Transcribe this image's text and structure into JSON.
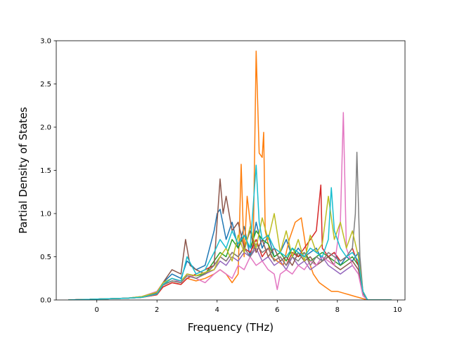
{
  "chart_data": {
    "type": "line",
    "title": "",
    "xlabel": "Frequency (THz)",
    "ylabel": "Partial Density of States",
    "xlim": [
      -1.35,
      10.25
    ],
    "ylim": [
      0.0,
      3.0
    ],
    "xticks": [
      0,
      2,
      4,
      6,
      8,
      10
    ],
    "yticks": [
      0.0,
      0.5,
      1.0,
      1.5,
      2.0,
      2.5,
      3.0
    ],
    "xtick_labels": [
      "0",
      "2",
      "4",
      "6",
      "8",
      "10"
    ],
    "ytick_labels": [
      "0.0",
      "0.5",
      "1.0",
      "1.5",
      "2.0",
      "2.5",
      "3.0"
    ],
    "grid": false,
    "legend": "none",
    "series": [
      {
        "color": "#1f77b4",
        "x": [
          -0.95,
          1.0,
          1.5,
          2.0,
          2.2,
          2.5,
          2.8,
          3.0,
          3.3,
          3.6,
          3.9,
          4.0,
          4.1,
          4.3,
          4.5,
          4.7,
          4.9,
          5.1,
          5.3,
          5.5,
          5.7,
          5.9,
          6.1,
          6.3,
          6.5,
          6.7,
          6.9,
          7.1,
          7.3,
          7.5,
          7.7,
          7.9,
          8.1,
          8.3,
          8.5,
          8.7,
          8.85,
          9.0,
          9.8
        ],
        "y": [
          0,
          0.02,
          0.04,
          0.08,
          0.2,
          0.3,
          0.25,
          0.45,
          0.35,
          0.4,
          0.8,
          1.0,
          1.05,
          0.7,
          0.9,
          0.6,
          0.85,
          0.5,
          0.9,
          0.6,
          0.75,
          0.5,
          0.55,
          0.7,
          0.5,
          0.6,
          0.5,
          0.55,
          0.6,
          0.45,
          0.5,
          0.55,
          0.4,
          0.5,
          0.45,
          0.55,
          0.1,
          0,
          0
        ]
      },
      {
        "color": "#ff7f0e",
        "x": [
          -0.95,
          1.0,
          1.5,
          2.0,
          2.2,
          2.5,
          2.8,
          3.0,
          3.3,
          3.6,
          3.9,
          4.1,
          4.3,
          4.5,
          4.7,
          4.8,
          4.9,
          5.0,
          5.2,
          5.3,
          5.4,
          5.5,
          5.55,
          5.6,
          5.8,
          6.0,
          6.2,
          6.4,
          6.6,
          6.8,
          7.0,
          7.2,
          7.4,
          7.6,
          7.8,
          8.0,
          8.2,
          8.4,
          8.6,
          8.8,
          9.0,
          9.8
        ],
        "y": [
          0,
          0.02,
          0.03,
          0.06,
          0.15,
          0.2,
          0.18,
          0.25,
          0.22,
          0.25,
          0.3,
          0.35,
          0.3,
          0.2,
          0.3,
          1.57,
          0.5,
          1.2,
          0.6,
          2.88,
          1.7,
          1.65,
          1.94,
          0.8,
          0.5,
          0.45,
          0.4,
          0.7,
          0.9,
          0.95,
          0.5,
          0.3,
          0.2,
          0.15,
          0.1,
          0.1,
          0.08,
          0.06,
          0.04,
          0.02,
          0,
          0
        ]
      },
      {
        "color": "#2ca02c",
        "x": [
          -0.95,
          1.0,
          1.5,
          2.0,
          2.2,
          2.5,
          2.8,
          3.0,
          3.3,
          3.6,
          3.9,
          4.1,
          4.3,
          4.5,
          4.7,
          4.9,
          5.1,
          5.3,
          5.5,
          5.7,
          5.9,
          6.1,
          6.3,
          6.5,
          6.7,
          6.9,
          7.1,
          7.3,
          7.5,
          7.7,
          7.9,
          8.1,
          8.3,
          8.5,
          8.7,
          8.85,
          9.0,
          9.8
        ],
        "y": [
          0,
          0.02,
          0.03,
          0.07,
          0.18,
          0.22,
          0.2,
          0.3,
          0.28,
          0.3,
          0.45,
          0.55,
          0.5,
          0.7,
          0.6,
          0.75,
          0.6,
          0.8,
          0.7,
          0.65,
          0.5,
          0.55,
          0.45,
          0.6,
          0.5,
          0.55,
          0.45,
          0.5,
          0.55,
          0.5,
          0.45,
          0.4,
          0.45,
          0.5,
          0.4,
          0.1,
          0,
          0
        ]
      },
      {
        "color": "#d62728",
        "x": [
          -0.95,
          1.0,
          1.5,
          2.0,
          2.2,
          2.5,
          2.8,
          3.0,
          3.3,
          3.6,
          3.9,
          4.1,
          4.3,
          4.5,
          4.7,
          4.9,
          5.1,
          5.3,
          5.5,
          5.7,
          5.9,
          6.1,
          6.3,
          6.5,
          6.7,
          6.9,
          7.1,
          7.3,
          7.45,
          7.5,
          7.7,
          7.9,
          8.1,
          8.3,
          8.5,
          8.7,
          8.85,
          9.0,
          9.8
        ],
        "y": [
          0,
          0.02,
          0.03,
          0.06,
          0.15,
          0.2,
          0.18,
          0.25,
          0.3,
          0.35,
          0.4,
          0.5,
          0.45,
          0.55,
          0.5,
          0.6,
          0.55,
          0.7,
          0.5,
          0.6,
          0.45,
          0.5,
          0.4,
          0.55,
          0.5,
          0.6,
          0.7,
          0.8,
          1.33,
          0.6,
          0.5,
          0.55,
          0.45,
          0.5,
          0.6,
          0.4,
          0.1,
          0,
          0
        ]
      },
      {
        "color": "#9467bd",
        "x": [
          -0.95,
          1.0,
          1.5,
          2.0,
          2.2,
          2.5,
          2.8,
          3.0,
          3.3,
          3.6,
          3.9,
          4.1,
          4.3,
          4.5,
          4.7,
          4.9,
          5.1,
          5.3,
          5.5,
          5.7,
          5.9,
          6.1,
          6.3,
          6.5,
          6.7,
          6.9,
          7.1,
          7.3,
          7.5,
          7.7,
          7.9,
          8.1,
          8.3,
          8.5,
          8.7,
          8.85,
          9.0,
          9.8
        ],
        "y": [
          0,
          0.02,
          0.03,
          0.07,
          0.18,
          0.25,
          0.2,
          0.3,
          0.25,
          0.3,
          0.35,
          0.45,
          0.4,
          0.5,
          0.45,
          0.55,
          0.5,
          0.6,
          0.45,
          0.5,
          0.4,
          0.45,
          0.35,
          0.5,
          0.4,
          0.45,
          0.35,
          0.4,
          0.5,
          0.4,
          0.35,
          0.3,
          0.35,
          0.4,
          0.3,
          0.08,
          0,
          0
        ]
      },
      {
        "color": "#8c564b",
        "x": [
          -0.95,
          1.0,
          1.5,
          2.0,
          2.2,
          2.5,
          2.8,
          2.95,
          3.1,
          3.3,
          3.6,
          3.9,
          4.1,
          4.2,
          4.3,
          4.5,
          4.7,
          4.9,
          5.1,
          5.3,
          5.5,
          5.7,
          5.9,
          6.1,
          6.3,
          6.5,
          6.7,
          6.9,
          7.1,
          7.3,
          7.5,
          7.7,
          7.9,
          8.1,
          8.3,
          8.5,
          8.7,
          8.85,
          9.0,
          9.8
        ],
        "y": [
          0,
          0.02,
          0.03,
          0.08,
          0.2,
          0.35,
          0.3,
          0.7,
          0.4,
          0.35,
          0.3,
          0.4,
          1.4,
          1.0,
          1.2,
          0.8,
          0.9,
          0.6,
          0.8,
          0.55,
          0.7,
          0.5,
          0.6,
          0.45,
          0.5,
          0.4,
          0.55,
          0.45,
          0.5,
          0.4,
          0.45,
          0.5,
          0.4,
          0.35,
          0.4,
          0.45,
          0.35,
          0.08,
          0,
          0
        ]
      },
      {
        "color": "#e377c2",
        "x": [
          -0.95,
          1.0,
          1.5,
          2.0,
          2.2,
          2.5,
          2.8,
          3.0,
          3.3,
          3.6,
          3.9,
          4.1,
          4.3,
          4.5,
          4.7,
          4.9,
          5.1,
          5.3,
          5.5,
          5.7,
          5.9,
          6.0,
          6.1,
          6.3,
          6.5,
          6.7,
          6.9,
          7.1,
          7.3,
          7.5,
          7.7,
          7.9,
          8.1,
          8.2,
          8.3,
          8.5,
          8.7,
          8.85,
          9.0,
          9.8
        ],
        "y": [
          0,
          0.02,
          0.04,
          0.1,
          0.2,
          0.25,
          0.2,
          0.3,
          0.25,
          0.2,
          0.3,
          0.35,
          0.3,
          0.25,
          0.4,
          0.35,
          0.5,
          0.4,
          0.45,
          0.35,
          0.3,
          0.12,
          0.3,
          0.35,
          0.3,
          0.4,
          0.35,
          0.45,
          0.4,
          0.5,
          0.45,
          0.4,
          0.9,
          2.17,
          0.6,
          0.4,
          0.3,
          0.05,
          0,
          0
        ]
      },
      {
        "color": "#7f7f7f",
        "x": [
          -0.95,
          1.0,
          1.5,
          2.0,
          2.2,
          2.5,
          2.8,
          3.0,
          3.3,
          3.6,
          3.9,
          4.1,
          4.3,
          4.5,
          4.7,
          4.9,
          5.1,
          5.3,
          5.5,
          5.7,
          5.9,
          6.1,
          6.3,
          6.5,
          6.7,
          6.9,
          7.1,
          7.3,
          7.5,
          7.7,
          7.9,
          8.1,
          8.3,
          8.5,
          8.6,
          8.65,
          8.75,
          8.85,
          9.0,
          9.8
        ],
        "y": [
          0,
          0.02,
          0.03,
          0.07,
          0.17,
          0.22,
          0.2,
          0.28,
          0.25,
          0.3,
          0.4,
          0.5,
          0.45,
          0.55,
          0.5,
          0.6,
          0.5,
          0.65,
          0.55,
          0.6,
          0.45,
          0.5,
          0.4,
          0.5,
          0.45,
          0.55,
          0.4,
          0.5,
          0.45,
          0.55,
          0.5,
          0.45,
          0.5,
          0.6,
          1.0,
          1.71,
          0.5,
          0.1,
          0,
          0
        ]
      },
      {
        "color": "#bcbd22",
        "x": [
          -0.95,
          1.0,
          1.5,
          2.0,
          2.2,
          2.5,
          2.8,
          3.0,
          3.3,
          3.6,
          3.9,
          4.1,
          4.3,
          4.5,
          4.7,
          4.9,
          5.1,
          5.3,
          5.5,
          5.7,
          5.9,
          6.1,
          6.3,
          6.5,
          6.7,
          6.9,
          7.1,
          7.3,
          7.5,
          7.7,
          7.9,
          8.1,
          8.3,
          8.5,
          8.7,
          8.85,
          9.0,
          9.8
        ],
        "y": [
          0,
          0.02,
          0.04,
          0.09,
          0.2,
          0.25,
          0.22,
          0.3,
          0.28,
          0.32,
          0.35,
          0.5,
          0.6,
          0.45,
          0.75,
          0.55,
          0.85,
          0.6,
          0.95,
          0.7,
          1.0,
          0.55,
          0.8,
          0.5,
          0.7,
          0.45,
          0.75,
          0.55,
          0.65,
          1.2,
          0.7,
          0.9,
          0.6,
          0.8,
          0.5,
          0.1,
          0,
          0
        ]
      },
      {
        "color": "#17becf",
        "x": [
          -0.95,
          1.0,
          1.5,
          2.0,
          2.2,
          2.5,
          2.8,
          3.0,
          3.3,
          3.6,
          3.9,
          4.1,
          4.3,
          4.5,
          4.7,
          4.9,
          5.1,
          5.3,
          5.4,
          5.5,
          5.7,
          5.9,
          6.1,
          6.3,
          6.5,
          6.7,
          6.9,
          7.1,
          7.3,
          7.5,
          7.7,
          7.8,
          7.9,
          8.1,
          8.3,
          8.5,
          8.7,
          8.85,
          9.0,
          9.8
        ],
        "y": [
          0,
          0.02,
          0.03,
          0.07,
          0.18,
          0.25,
          0.22,
          0.5,
          0.3,
          0.35,
          0.55,
          0.7,
          0.6,
          0.8,
          0.65,
          0.75,
          0.6,
          1.56,
          0.9,
          0.7,
          0.75,
          0.6,
          0.55,
          0.5,
          0.6,
          0.55,
          0.5,
          0.6,
          0.55,
          0.5,
          0.7,
          1.3,
          0.8,
          0.6,
          0.5,
          0.55,
          0.45,
          0.1,
          0,
          0
        ]
      }
    ]
  }
}
